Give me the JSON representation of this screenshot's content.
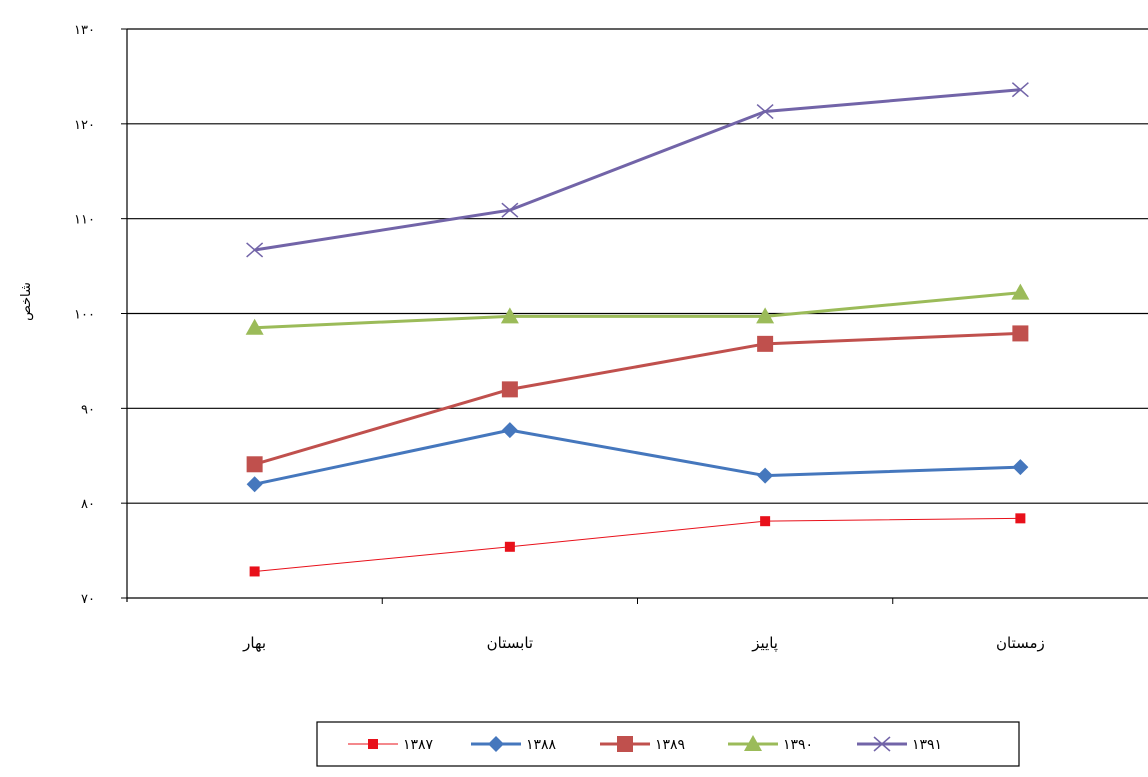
{
  "chart_data": {
    "type": "line",
    "title": "",
    "xlabel": "",
    "ylabel": "شاخص",
    "categories": [
      "بهار",
      "تابستان",
      "پاییز",
      "زمستان"
    ],
    "ylim": [
      70,
      130
    ],
    "yticks": [
      70,
      80,
      90,
      100,
      110,
      120,
      130
    ],
    "ytick_labels": [
      "۷۰",
      "۸۰",
      "۹۰",
      "۱۰۰",
      "۱۱۰",
      "۱۲۰",
      "۱۳۰"
    ],
    "grid": true,
    "legend_position": "bottom",
    "series": [
      {
        "name": "۱۳۸۷",
        "values": [
          72.8,
          75.4,
          78.1,
          78.4
        ],
        "color": "#e8101a",
        "marker": "square-small",
        "stroke_width": 1
      },
      {
        "name": "۱۳۸۸",
        "values": [
          82.0,
          87.7,
          82.9,
          83.8
        ],
        "color": "#4577bd",
        "marker": "diamond",
        "stroke_width": 3
      },
      {
        "name": "۱۳۸۹",
        "values": [
          84.1,
          92.0,
          96.8,
          97.9
        ],
        "color": "#c0504d",
        "marker": "square",
        "stroke_width": 3
      },
      {
        "name": "۱۳۹۰",
        "values": [
          98.5,
          99.7,
          99.7,
          102.2
        ],
        "color": "#9bbb59",
        "marker": "triangle",
        "stroke_width": 3
      },
      {
        "name": "۱۳۹۱",
        "values": [
          106.7,
          110.9,
          121.3,
          123.6
        ],
        "color": "#7264a8",
        "marker": "x",
        "stroke_width": 3
      }
    ]
  }
}
